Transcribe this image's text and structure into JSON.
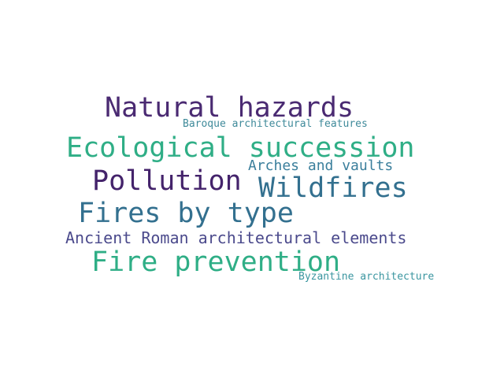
{
  "word_cloud": {
    "words": [
      {
        "text": "Natural hazards",
        "color": "#4a2a72"
      },
      {
        "text": "Baroque architectural features",
        "color": "#3f8a9a"
      },
      {
        "text": "Ecological succession",
        "color": "#2fae86"
      },
      {
        "text": "Arches and vaults",
        "color": "#3b7f9c"
      },
      {
        "text": "Pollution",
        "color": "#44236b"
      },
      {
        "text": "Wildfires",
        "color": "#33708f"
      },
      {
        "text": "Fires by type",
        "color": "#33708f"
      },
      {
        "text": "Ancient Roman architectural elements",
        "color": "#4b4a8c"
      },
      {
        "text": "Fire prevention",
        "color": "#2fae86"
      },
      {
        "text": "Byzantine architecture",
        "color": "#3b96a0"
      }
    ]
  }
}
